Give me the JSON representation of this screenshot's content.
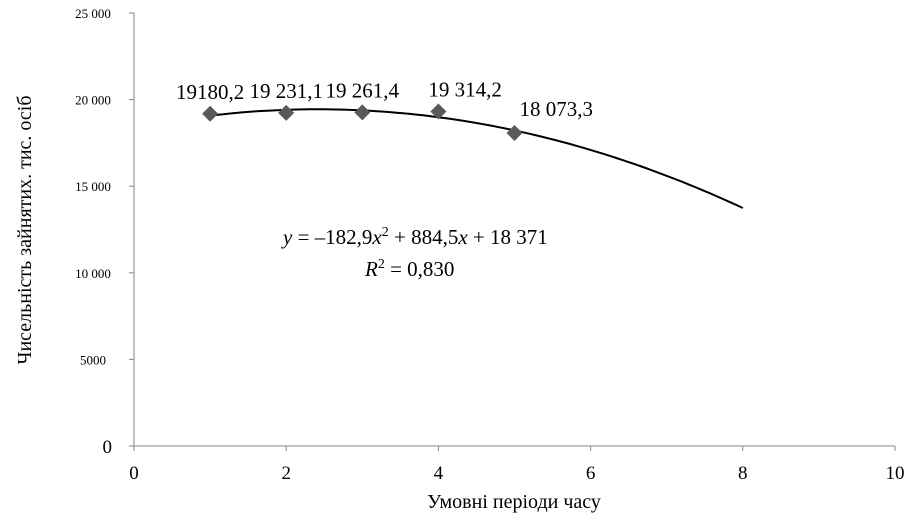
{
  "chart_data": {
    "type": "scatter",
    "xlabel": "Умовні періоди часу",
    "ylabel": "Чисельність зайнятих. тис. осіб",
    "xlim": [
      0,
      10
    ],
    "ylim": [
      0,
      25000
    ],
    "x_ticks": [
      "0",
      "2",
      "4",
      "6",
      "8",
      "10"
    ],
    "y_ticks": [
      "0",
      "5000",
      "10 000",
      "15 000",
      "20 000",
      "25 000"
    ],
    "points": [
      {
        "x": 1,
        "y": 19180.2,
        "label": "19180,2"
      },
      {
        "x": 2,
        "y": 19231.1,
        "label": "19 231,1"
      },
      {
        "x": 3,
        "y": 19261.4,
        "label": "19 261,4"
      },
      {
        "x": 4,
        "y": 19314.2,
        "label": "19 314,2"
      },
      {
        "x": 5,
        "y": 18073.3,
        "label": "18 073,3"
      }
    ],
    "marker_color": "#595959",
    "trendline": {
      "type": "polynomial",
      "coefficients": [
        -182.9,
        884.5,
        18371
      ],
      "x_range": [
        1,
        8
      ],
      "color": "#000000"
    },
    "equation": {
      "y": "y",
      "eq1": " = –182,9",
      "x1": "x",
      "sup": "2",
      "eq2": " + 884,5",
      "x2": "x",
      "eq3": " + 18 371",
      "r": "R",
      "r_sup": "2",
      "r_val": " = 0,830"
    },
    "grid": false,
    "legend": "none"
  }
}
